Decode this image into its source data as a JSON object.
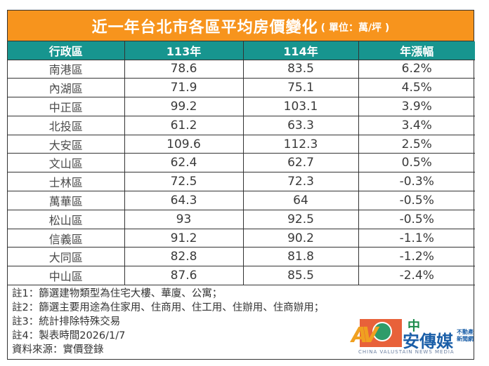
{
  "title": {
    "main": "近一年台北市各區平均房價變化",
    "unit": "( 單位：萬/坪 )"
  },
  "colors": {
    "title_bg": "#F7941D",
    "header_bg": "#17958F",
    "border": "#333333"
  },
  "table": {
    "headers": [
      "行政區",
      "113年",
      "114年",
      "年漲幅"
    ],
    "rows": [
      [
        "南港區",
        "78.6",
        "83.5",
        "6.2%"
      ],
      [
        "內湖區",
        "71.9",
        "75.1",
        "4.5%"
      ],
      [
        "中正區",
        "99.2",
        "103.1",
        "3.9%"
      ],
      [
        "北投區",
        "61.2",
        "63.3",
        "3.4%"
      ],
      [
        "大安區",
        "109.6",
        "112.3",
        "2.5%"
      ],
      [
        "文山區",
        "62.4",
        "62.7",
        "0.5%"
      ],
      [
        "士林區",
        "72.5",
        "72.3",
        "-0.3%"
      ],
      [
        "萬華區",
        "64.3",
        "64",
        "-0.5%"
      ],
      [
        "松山區",
        "93",
        "92.5",
        "-0.5%"
      ],
      [
        "信義區",
        "91.2",
        "90.2",
        "-1.1%"
      ],
      [
        "大同區",
        "82.8",
        "81.8",
        "-1.2%"
      ],
      [
        "中山區",
        "87.6",
        "85.5",
        "-2.4%"
      ]
    ]
  },
  "notes": [
    "註1：篩選建物類型為住宅大樓、華廈、公寓；",
    "註2：篩選主要用途為住家用、住商用、住工用、住辦用、住商辦用；",
    "註3：統計排除特殊交易",
    "註4：製表時間2026/1/7",
    "資料來源：實價登錄"
  ],
  "logo": {
    "mark": "AV",
    "zh_top": "中",
    "zh_main": "安傳媒",
    "zh_small_1": "不動產",
    "zh_small_2": "新聞網",
    "en": "CHINA VALUSTAIN NEWS MEDIA"
  },
  "chart_data": {
    "type": "table",
    "title": "近一年台北市各區平均房價變化 (單位：萬/坪)",
    "columns": [
      "行政區",
      "113年",
      "114年",
      "年漲幅"
    ],
    "categories": [
      "南港區",
      "內湖區",
      "中正區",
      "北投區",
      "大安區",
      "文山區",
      "士林區",
      "萬華區",
      "松山區",
      "信義區",
      "大同區",
      "中山區"
    ],
    "series": [
      {
        "name": "113年",
        "values": [
          78.6,
          71.9,
          99.2,
          61.2,
          109.6,
          62.4,
          72.5,
          64.3,
          93,
          91.2,
          82.8,
          87.6
        ]
      },
      {
        "name": "114年",
        "values": [
          83.5,
          75.1,
          103.1,
          63.3,
          112.3,
          62.7,
          72.3,
          64,
          92.5,
          90.2,
          81.8,
          85.5
        ]
      },
      {
        "name": "年漲幅(%)",
        "values": [
          6.2,
          4.5,
          3.9,
          3.4,
          2.5,
          0.5,
          -0.3,
          -0.5,
          -0.5,
          -1.1,
          -1.2,
          -2.4
        ]
      }
    ],
    "unit": "萬/坪",
    "notes": [
      "註1：篩選建物類型為住宅大樓、華廈、公寓；",
      "註2：篩選主要用途為住家用、住商用、住工用、住辦用、住商辦用；",
      "註3：統計排除特殊交易",
      "註4：製表時間2026/1/7",
      "資料來源：實價登錄"
    ]
  }
}
